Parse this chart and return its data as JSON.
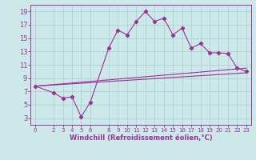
{
  "xlabel": "Windchill (Refroidissement éolien,°C)",
  "bg_color": "#cce8e8",
  "grid_color": "#b0d0d0",
  "line_color": "#993399",
  "spine_color": "#993399",
  "xlim": [
    -0.5,
    23.5
  ],
  "ylim": [
    2,
    20
  ],
  "yticks": [
    3,
    5,
    7,
    9,
    11,
    13,
    15,
    17,
    19
  ],
  "xticks": [
    0,
    2,
    3,
    4,
    5,
    6,
    8,
    9,
    10,
    11,
    12,
    13,
    14,
    15,
    16,
    17,
    18,
    19,
    20,
    21,
    22,
    23
  ],
  "curve1_x": [
    0,
    2,
    3,
    4,
    5,
    6,
    8,
    9,
    10,
    11,
    12,
    13,
    14,
    15,
    16,
    17,
    18,
    19,
    20,
    21,
    22,
    23
  ],
  "curve1_y": [
    7.8,
    6.8,
    6.0,
    6.2,
    3.2,
    5.4,
    13.5,
    16.2,
    15.5,
    17.5,
    19.0,
    17.5,
    18.0,
    15.5,
    16.5,
    13.5,
    14.2,
    12.8,
    12.8,
    12.7,
    10.5,
    10.0
  ],
  "line2_x": [
    0,
    23
  ],
  "line2_y": [
    7.8,
    10.5
  ],
  "line3_x": [
    0,
    23
  ],
  "line3_y": [
    7.8,
    9.8
  ],
  "xlabel_fontsize": 6,
  "tick_fontsize_x": 5,
  "tick_fontsize_y": 6
}
